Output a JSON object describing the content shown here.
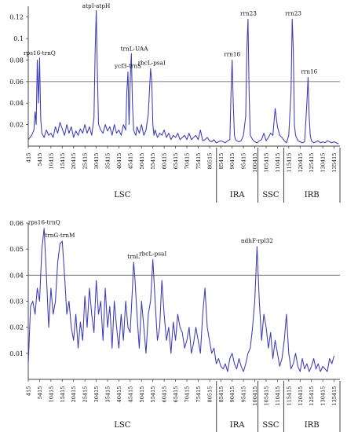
{
  "colors": {
    "series": "#3b3bb8",
    "axis": "#444444",
    "threshold": "#555555",
    "text": "#111111"
  },
  "chart_data": [
    {
      "type": "line",
      "title": "",
      "xlabel": "",
      "ylabel": "",
      "xlim": [
        415,
        138000
      ],
      "ylim": [
        0,
        0.13
      ],
      "yticks": [
        0.02,
        0.04,
        0.06,
        0.08,
        0.1,
        0.12
      ],
      "ytick_labels": [
        "0.02",
        "0.04",
        "0.06",
        "0.08",
        "0.1",
        "0.12"
      ],
      "xticks": [
        415,
        5415,
        10415,
        15415,
        20415,
        25415,
        30415,
        35415,
        40415,
        45415,
        50415,
        55415,
        60415,
        65415,
        70415,
        75415,
        80515,
        85415,
        90415,
        95415,
        100415,
        105415,
        110415,
        115415,
        120415,
        125415,
        130415,
        135415
      ],
      "xtick_labels": [
        "415",
        "5415",
        "10415",
        "15415",
        "20415",
        "25415",
        "30415",
        "35415",
        "40415",
        "45415",
        "50415",
        "55415",
        "60415",
        "65415",
        "70415",
        "75415",
        "80515",
        "85415",
        "90415",
        "95415",
        "100415",
        "105415",
        "110415",
        "115415",
        "120415",
        "125415",
        "130415",
        "135415"
      ],
      "threshold": 0.06,
      "regions": [
        {
          "label": "LSC",
          "start": 415,
          "end": 83500
        },
        {
          "label": "IRA",
          "start": 83500,
          "end": 101800
        },
        {
          "label": "SSC",
          "start": 101800,
          "end": 113200
        },
        {
          "label": "IRB",
          "start": 113200,
          "end": 138000
        }
      ],
      "annotations": [
        {
          "label": "rps16-trnQ",
          "x": 5415,
          "y": 0.081
        },
        {
          "label": "atpI-atpH",
          "x": 30415,
          "y": 0.125
        },
        {
          "label": "ycf3-trnS",
          "x": 44415,
          "y": 0.069
        },
        {
          "label": "trnL-UAA",
          "x": 47215,
          "y": 0.085
        },
        {
          "label": "rbcL-psaI",
          "x": 54915,
          "y": 0.072
        },
        {
          "label": "rrn16",
          "x": 90415,
          "y": 0.08
        },
        {
          "label": "rrn23",
          "x": 97615,
          "y": 0.118
        },
        {
          "label": "rrn23",
          "x": 117415,
          "y": 0.118
        },
        {
          "label": "rrn16",
          "x": 124415,
          "y": 0.064
        }
      ],
      "series": [
        {
          "x": [
            415,
            1915,
            2915,
            3415,
            3915,
            4415,
            4915,
            5415,
            5915,
            6415,
            7415,
            8415,
            9415,
            10415,
            11415,
            12415,
            13415,
            14415,
            15415,
            16415,
            17415,
            18415,
            19415,
            20415,
            21415,
            22415,
            23415,
            24415,
            25415,
            26415,
            27415,
            28415,
            29415,
            29915,
            30415,
            30915,
            31415,
            32415,
            33415,
            34415,
            35415,
            36415,
            37415,
            38415,
            39415,
            40415,
            41415,
            42415,
            43415,
            43915,
            44415,
            44915,
            45415,
            45915,
            46415,
            46915,
            47415,
            47915,
            48415,
            49415,
            50415,
            51415,
            52415,
            53415,
            54415,
            54915,
            55415,
            55915,
            56415,
            57415,
            58415,
            59415,
            60415,
            61415,
            62415,
            63415,
            64415,
            65415,
            66415,
            67415,
            68415,
            69415,
            70415,
            71415,
            72415,
            73415,
            74415,
            75415,
            76415,
            77415,
            78415,
            79415,
            80415,
            81415,
            82415,
            83415,
            84415,
            85415,
            86415,
            87415,
            88415,
            89415,
            89915,
            90415,
            90915,
            91415,
            91915,
            92415,
            93415,
            94415,
            95415,
            96415,
            96915,
            97415,
            97915,
            98415,
            99415,
            100415,
            101415,
            102415,
            103415,
            104415,
            105415,
            106415,
            107415,
            108415,
            109415,
            110415,
            111415,
            112415,
            113415,
            114415,
            115415,
            116415,
            116915,
            117415,
            117915,
            118415,
            119415,
            120415,
            121415,
            122415,
            123415,
            123915,
            124415,
            124915,
            125415,
            126415,
            127415,
            128415,
            129415,
            130415,
            131415,
            132415,
            133415,
            134415,
            135415,
            136415,
            137415
          ],
          "values": [
            0.006,
            0.01,
            0.015,
            0.032,
            0.02,
            0.08,
            0.04,
            0.082,
            0.025,
            0.012,
            0.008,
            0.015,
            0.01,
            0.012,
            0.008,
            0.018,
            0.012,
            0.022,
            0.016,
            0.01,
            0.02,
            0.012,
            0.018,
            0.008,
            0.014,
            0.01,
            0.016,
            0.012,
            0.02,
            0.012,
            0.018,
            0.01,
            0.026,
            0.085,
            0.126,
            0.07,
            0.02,
            0.015,
            0.012,
            0.02,
            0.014,
            0.018,
            0.01,
            0.02,
            0.012,
            0.015,
            0.01,
            0.02,
            0.015,
            0.05,
            0.069,
            0.02,
            0.06,
            0.086,
            0.04,
            0.015,
            0.012,
            0.01,
            0.018,
            0.012,
            0.02,
            0.01,
            0.015,
            0.03,
            0.072,
            0.06,
            0.02,
            0.01,
            0.015,
            0.008,
            0.012,
            0.01,
            0.015,
            0.008,
            0.012,
            0.006,
            0.01,
            0.008,
            0.012,
            0.006,
            0.008,
            0.01,
            0.006,
            0.012,
            0.006,
            0.008,
            0.01,
            0.006,
            0.015,
            0.005,
            0.006,
            0.008,
            0.005,
            0.004,
            0.006,
            0.003,
            0.004,
            0.005,
            0.004,
            0.003,
            0.005,
            0.006,
            0.05,
            0.08,
            0.04,
            0.01,
            0.006,
            0.005,
            0.004,
            0.005,
            0.01,
            0.028,
            0.09,
            0.118,
            0.05,
            0.01,
            0.006,
            0.004,
            0.003,
            0.005,
            0.006,
            0.012,
            0.005,
            0.008,
            0.012,
            0.01,
            0.035,
            0.018,
            0.01,
            0.008,
            0.005,
            0.003,
            0.01,
            0.05,
            0.118,
            0.09,
            0.02,
            0.01,
            0.005,
            0.004,
            0.003,
            0.004,
            0.04,
            0.064,
            0.028,
            0.01,
            0.005,
            0.003,
            0.004,
            0.005,
            0.003,
            0.004,
            0.003,
            0.005,
            0.004,
            0.003,
            0.004,
            0.003,
            0.002
          ]
        }
      ]
    },
    {
      "type": "line",
      "title": "",
      "xlabel": "",
      "ylabel": "",
      "xlim": [
        415,
        138000
      ],
      "ylim": [
        0,
        0.06
      ],
      "yticks": [
        0.01,
        0.02,
        0.03,
        0.04,
        0.05,
        0.06
      ],
      "ytick_labels": [
        "0.01",
        "0.02",
        "0.03",
        "0.04",
        "0.05",
        "0.06"
      ],
      "xticks": [
        415,
        5415,
        10415,
        15415,
        20415,
        25415,
        30415,
        35415,
        40415,
        45415,
        50415,
        55415,
        60415,
        65415,
        70415,
        75415,
        80515,
        85415,
        90415,
        95415,
        100415,
        105415,
        110415,
        115415,
        120415,
        125415,
        130415,
        135415
      ],
      "xtick_labels": [
        "415",
        "5415",
        "10415",
        "15415",
        "20415",
        "25415",
        "30415",
        "35415",
        "40415",
        "45415",
        "50415",
        "55415",
        "60415",
        "65415",
        "70415",
        "75415",
        "80515",
        "85415",
        "90415",
        "95415",
        "100415",
        "105415",
        "110415",
        "115415",
        "120415",
        "125415",
        "130415",
        "135415"
      ],
      "threshold": 0.04,
      "regions": [
        {
          "label": "LSC",
          "start": 415,
          "end": 83500
        },
        {
          "label": "IRA",
          "start": 83500,
          "end": 101800
        },
        {
          "label": "SSC",
          "start": 101800,
          "end": 113200
        },
        {
          "label": "IRB",
          "start": 113200,
          "end": 138000
        }
      ],
      "annotations": [
        {
          "label": "rps16-trnQ",
          "x": 7415,
          "y": 0.058
        },
        {
          "label": "trnG-trnM",
          "x": 14415,
          "y": 0.053
        },
        {
          "label": "trnL",
          "x": 46915,
          "y": 0.045
        },
        {
          "label": "rbcL-psaI",
          "x": 55415,
          "y": 0.046
        },
        {
          "label": "ndhF-rpl32",
          "x": 101415,
          "y": 0.051
        }
      ],
      "series": [
        {
          "x": [
            415,
            1415,
            2415,
            3415,
            4415,
            5415,
            6415,
            7415,
            8415,
            9415,
            10415,
            11415,
            12415,
            13415,
            14415,
            15415,
            16415,
            17415,
            18415,
            19415,
            20415,
            21415,
            22415,
            23415,
            24415,
            25415,
            26415,
            27415,
            28415,
            29415,
            30415,
            31415,
            32415,
            33415,
            34415,
            35415,
            36415,
            37415,
            38415,
            39415,
            40415,
            41415,
            42415,
            43415,
            44415,
            45415,
            46415,
            46915,
            47415,
            48415,
            49415,
            50415,
            51415,
            52415,
            53415,
            54415,
            55415,
            56415,
            57415,
            58415,
            59415,
            60415,
            61415,
            62415,
            63415,
            64415,
            65415,
            66415,
            67415,
            68415,
            69415,
            70415,
            71415,
            72415,
            73415,
            74415,
            75415,
            76415,
            77415,
            78415,
            79415,
            80415,
            81415,
            82415,
            83415,
            84415,
            85415,
            86415,
            87415,
            88415,
            89415,
            90415,
            91415,
            92415,
            93415,
            94415,
            95415,
            96415,
            97415,
            98415,
            99415,
            100415,
            101415,
            102415,
            103415,
            104415,
            105415,
            106415,
            107415,
            108415,
            109415,
            110415,
            111415,
            112415,
            113415,
            114415,
            115415,
            116415,
            117415,
            118415,
            119415,
            120415,
            121415,
            122415,
            123415,
            124415,
            125415,
            126415,
            127415,
            128415,
            129415,
            130415,
            131415,
            132415,
            133415,
            134415,
            135415
          ],
          "values": [
            0.006,
            0.028,
            0.03,
            0.025,
            0.035,
            0.03,
            0.05,
            0.058,
            0.04,
            0.02,
            0.035,
            0.025,
            0.03,
            0.045,
            0.052,
            0.053,
            0.04,
            0.025,
            0.03,
            0.02,
            0.015,
            0.025,
            0.012,
            0.022,
            0.015,
            0.032,
            0.02,
            0.035,
            0.025,
            0.018,
            0.038,
            0.025,
            0.03,
            0.015,
            0.035,
            0.02,
            0.028,
            0.012,
            0.03,
            0.02,
            0.012,
            0.025,
            0.015,
            0.03,
            0.02,
            0.018,
            0.035,
            0.045,
            0.04,
            0.025,
            0.012,
            0.03,
            0.02,
            0.01,
            0.025,
            0.03,
            0.046,
            0.03,
            0.015,
            0.02,
            0.038,
            0.025,
            0.015,
            0.02,
            0.01,
            0.022,
            0.015,
            0.025,
            0.02,
            0.018,
            0.012,
            0.015,
            0.02,
            0.01,
            0.014,
            0.02,
            0.015,
            0.01,
            0.025,
            0.035,
            0.02,
            0.015,
            0.01,
            0.012,
            0.006,
            0.008,
            0.005,
            0.004,
            0.006,
            0.003,
            0.008,
            0.01,
            0.006,
            0.004,
            0.008,
            0.005,
            0.003,
            0.006,
            0.01,
            0.012,
            0.02,
            0.03,
            0.051,
            0.03,
            0.015,
            0.025,
            0.02,
            0.012,
            0.018,
            0.008,
            0.015,
            0.01,
            0.005,
            0.008,
            0.015,
            0.025,
            0.01,
            0.004,
            0.006,
            0.01,
            0.005,
            0.003,
            0.008,
            0.004,
            0.006,
            0.003,
            0.005,
            0.008,
            0.004,
            0.006,
            0.003,
            0.005,
            0.004,
            0.003,
            0.008,
            0.006,
            0.009
          ]
        }
      ]
    }
  ]
}
